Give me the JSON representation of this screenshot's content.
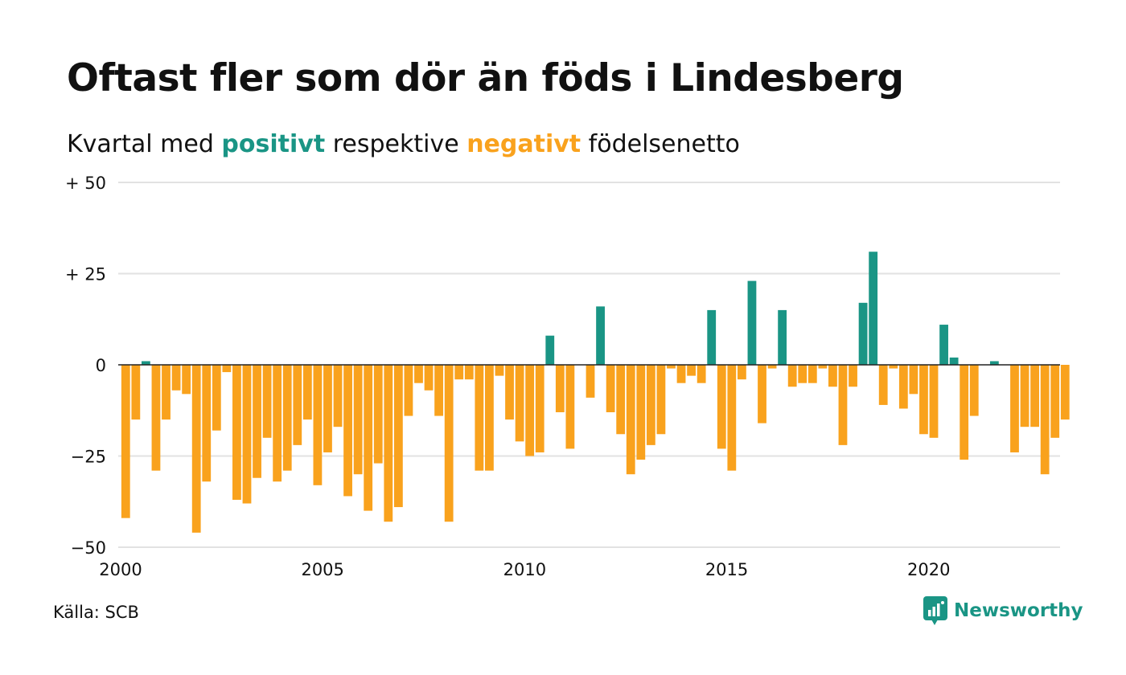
{
  "title": "Oftast fler som dör än föds i Lindesberg",
  "subtitle": {
    "prefix": "Kvartal med ",
    "positive": "positivt",
    "middle": " respektive ",
    "negative": "negativt",
    "suffix": " födelsenetto"
  },
  "source": "Källa: SCB",
  "brand": {
    "name": "Newsworthy",
    "icon": "newsworthy-logo-icon"
  },
  "colors": {
    "positive": "#1a9585",
    "negative": "#f9a21d",
    "grid": "#e2e2e2",
    "zero_line": "#222222",
    "text": "#111111",
    "brand": "#1a9585"
  },
  "chart_data": {
    "type": "bar",
    "title": "Oftast fler som dör än föds i Lindesberg",
    "subtitle": "Kvartal med positivt respektive negativt födelsenetto",
    "xlabel": "",
    "ylabel": "",
    "x_start": "2000 Q1",
    "x_frequency": "quarter",
    "x_ticks": [
      2000,
      2005,
      2010,
      2015,
      2020
    ],
    "x_tick_labels": [
      "2000",
      "2005",
      "2010",
      "2015",
      "2020"
    ],
    "y_ticks": [
      -50,
      -25,
      0,
      25,
      50
    ],
    "y_tick_labels": [
      "−50",
      "−25",
      "0",
      "+ 25",
      "+ 50"
    ],
    "ylim": [
      -50,
      50
    ],
    "xlim": [
      2000,
      2023.25
    ],
    "grid": true,
    "legend": "none",
    "values": [
      -42,
      -15,
      1,
      -29,
      -15,
      -7,
      -8,
      -46,
      -32,
      -18,
      -2,
      -37,
      -38,
      -31,
      -20,
      -32,
      -29,
      -22,
      -15,
      -33,
      -24,
      -17,
      -36,
      -30,
      -40,
      -27,
      -43,
      -39,
      -14,
      -5,
      -7,
      -14,
      -43,
      -4,
      -4,
      -29,
      -29,
      -3,
      -15,
      -21,
      -25,
      -24,
      8,
      -13,
      -23,
      0,
      -9,
      16,
      -13,
      -19,
      -30,
      -26,
      -22,
      -19,
      -1,
      -5,
      -3,
      -5,
      15,
      -23,
      -29,
      -4,
      23,
      -16,
      -1,
      15,
      -6,
      -5,
      -5,
      -1,
      -6,
      -22,
      -6,
      17,
      31,
      -11,
      -1,
      -12,
      -8,
      -19,
      -20,
      11,
      2,
      -26,
      -14,
      0,
      1,
      0,
      -24,
      -17,
      -17,
      -30,
      -20,
      -15
    ]
  }
}
